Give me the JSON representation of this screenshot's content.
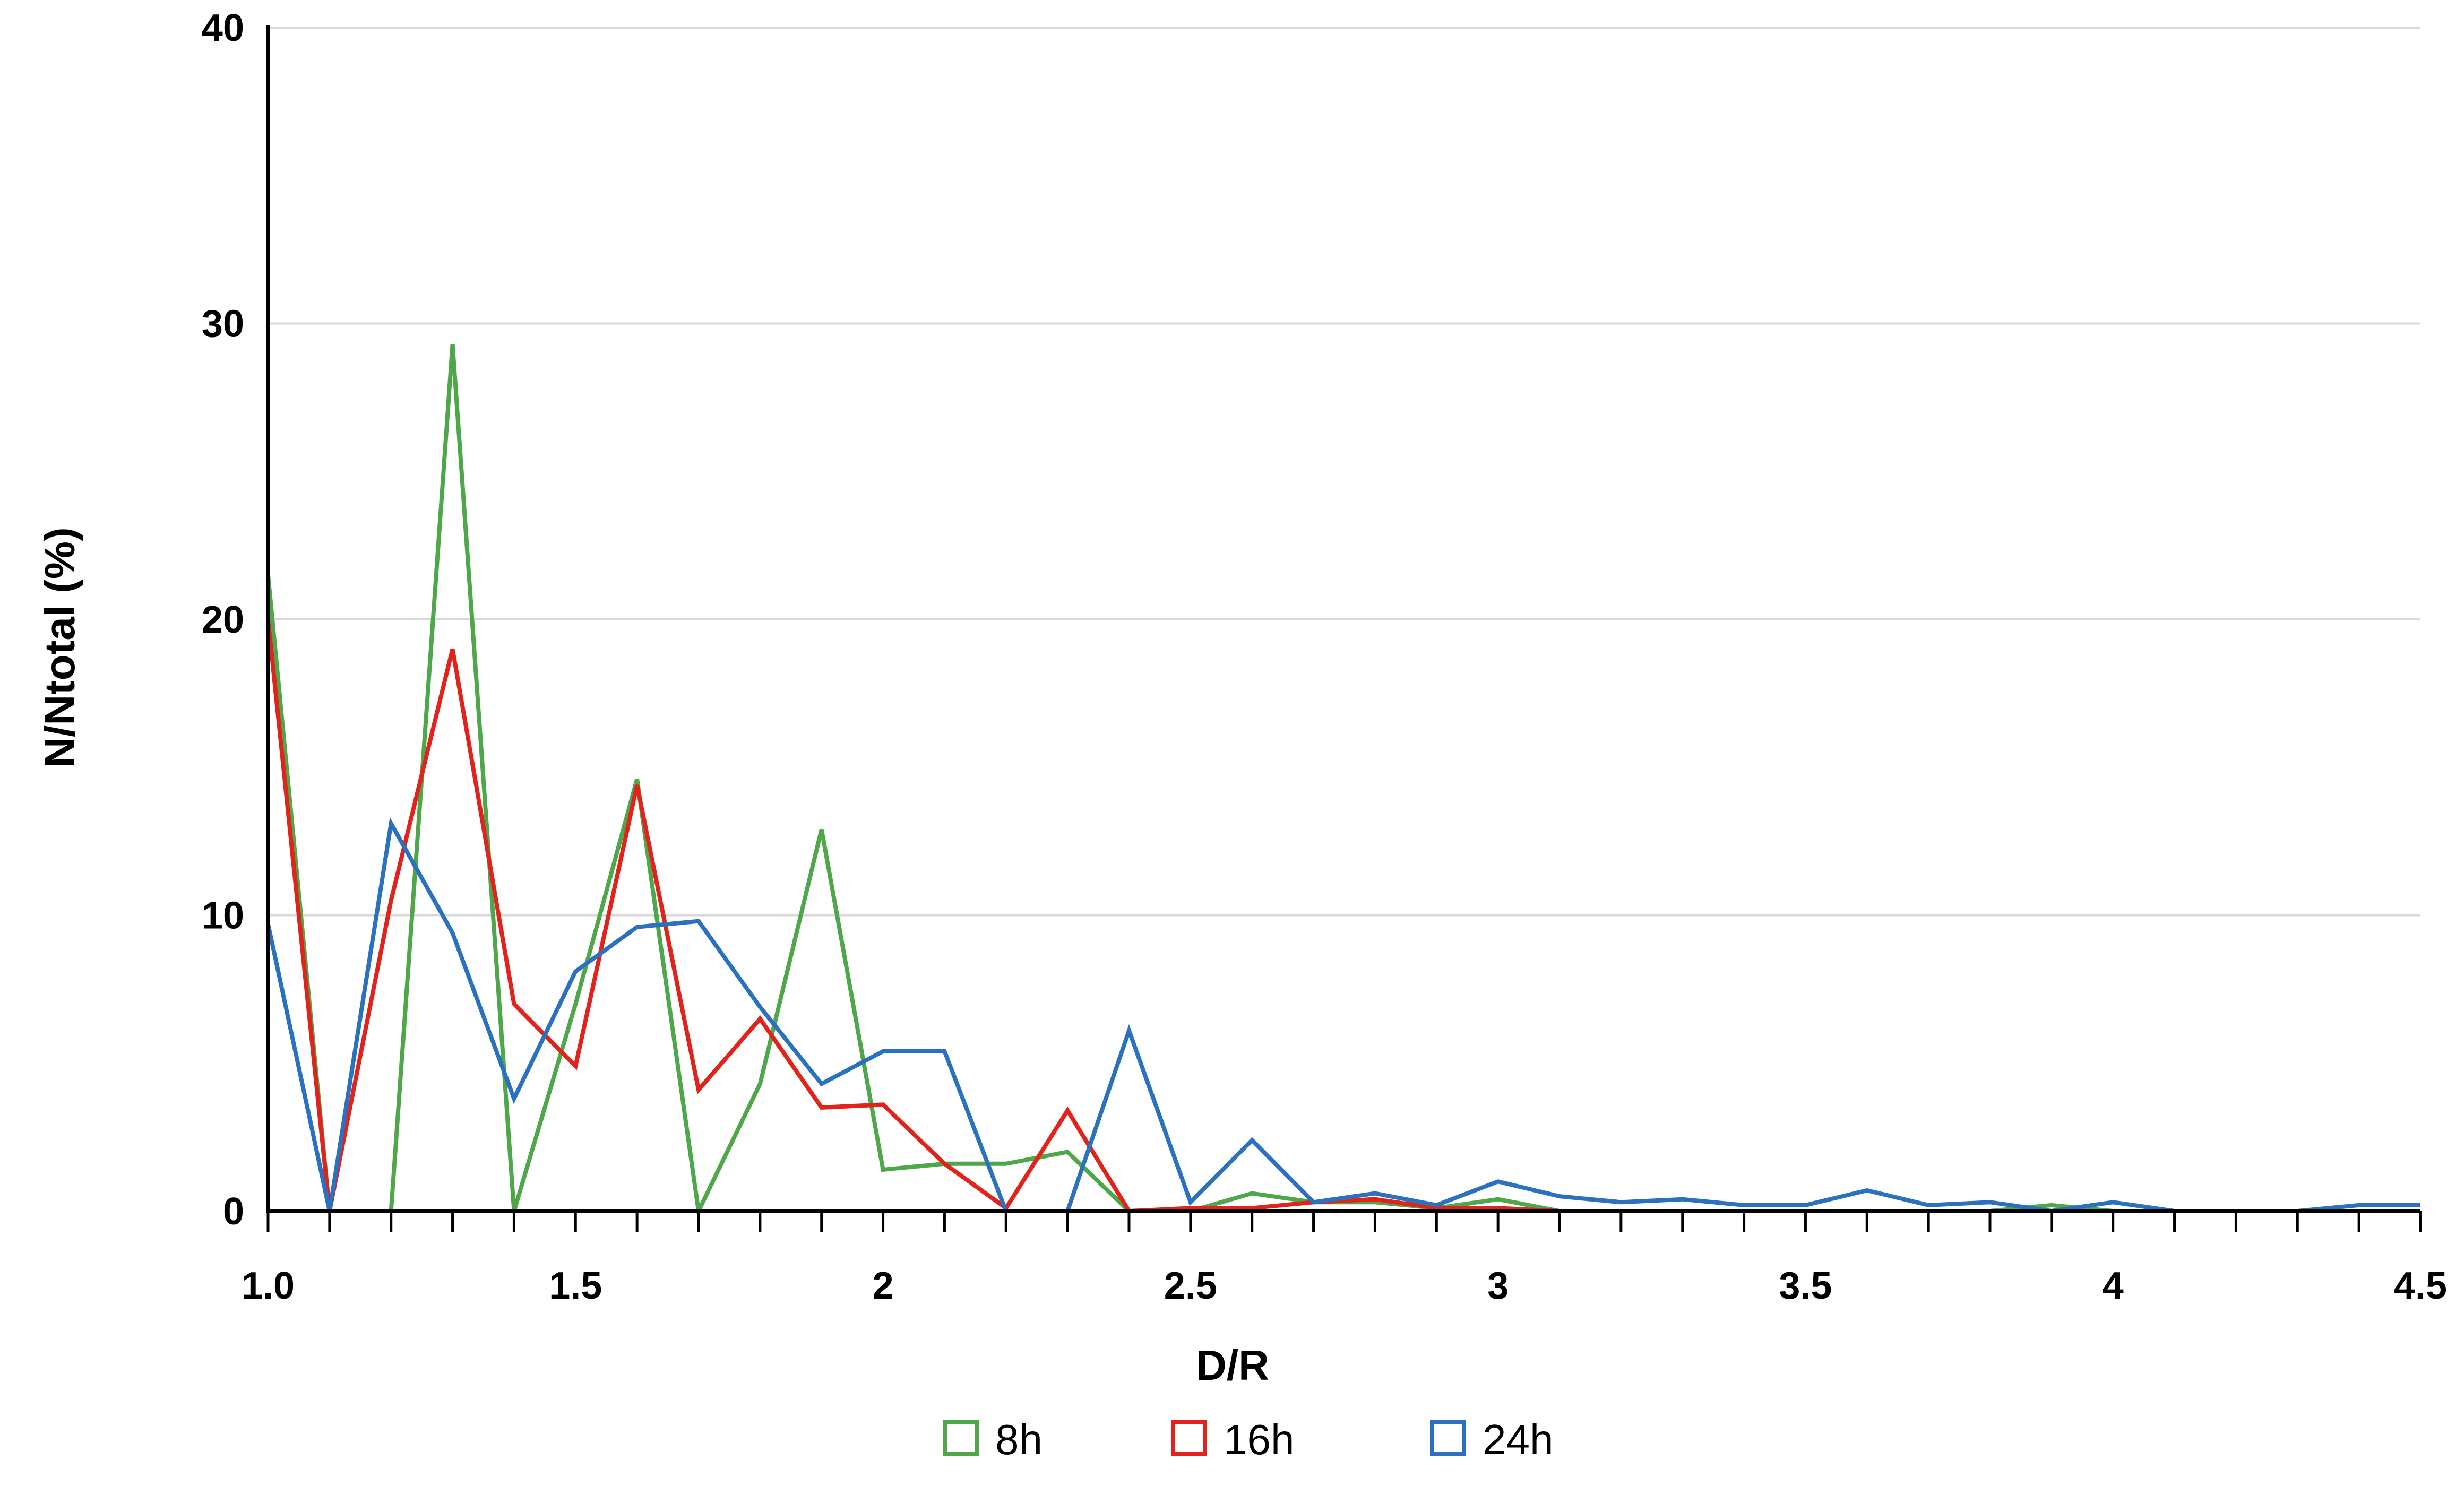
{
  "chart_data": {
    "type": "line",
    "title": "",
    "xlabel": "D/R",
    "ylabel": "N/Ntotal (%)",
    "xlim": [
      1.0,
      4.5
    ],
    "ylim": [
      0,
      40
    ],
    "x_ticks": [
      1.0,
      1.5,
      2,
      2.5,
      3,
      3.5,
      4,
      4.5
    ],
    "x_tick_labels": [
      "1.0",
      "1.5",
      "2",
      "2.5",
      "3",
      "3.5",
      "4",
      "4.5"
    ],
    "y_ticks": [
      0,
      10,
      20,
      30,
      40
    ],
    "y_tick_labels": [
      "0",
      "10",
      "20",
      "30",
      "40"
    ],
    "grid": "horizontal",
    "legend_position": "bottom",
    "x": [
      1.0,
      1.1,
      1.2,
      1.3,
      1.4,
      1.5,
      1.6,
      1.7,
      1.8,
      1.9,
      2.0,
      2.1,
      2.2,
      2.3,
      2.4,
      2.5,
      2.6,
      2.7,
      2.8,
      2.9,
      3.0,
      3.1,
      3.2,
      3.3,
      3.4,
      3.5,
      3.6,
      3.7,
      3.8,
      3.9,
      4.0,
      4.1,
      4.2,
      4.3,
      4.4,
      4.5
    ],
    "series": [
      {
        "name": "8h",
        "color": "#4EA84A",
        "values": [
          21.5,
          0,
          0,
          29.3,
          0,
          7.0,
          14.6,
          0,
          4.3,
          12.9,
          1.4,
          1.6,
          1.6,
          2.0,
          0,
          0,
          0.6,
          0.3,
          0.3,
          0.1,
          0.4,
          0,
          0,
          0,
          0,
          0,
          0,
          0,
          0,
          0.2,
          0,
          0,
          0,
          0,
          0,
          0
        ]
      },
      {
        "name": "16h",
        "color": "#E2221B",
        "values": [
          20.0,
          0,
          10.5,
          19.0,
          7.0,
          4.9,
          14.4,
          4.1,
          6.5,
          3.5,
          3.6,
          1.6,
          0.1,
          3.4,
          0,
          0.1,
          0.1,
          0.3,
          0.4,
          0.1,
          0.1,
          0,
          0,
          0,
          0,
          0,
          0,
          0,
          0,
          0,
          0,
          0,
          0,
          0,
          0,
          0
        ]
      },
      {
        "name": "24h",
        "color": "#2A72BF",
        "values": [
          9.7,
          0,
          13.1,
          9.4,
          3.8,
          8.1,
          9.6,
          9.8,
          6.9,
          4.3,
          5.4,
          5.4,
          0,
          0,
          6.1,
          0.3,
          2.4,
          0.3,
          0.6,
          0.2,
          1.0,
          0.5,
          0.3,
          0.4,
          0.2,
          0.2,
          0.7,
          0.2,
          0.3,
          0,
          0.3,
          0,
          0,
          0,
          0.2,
          0.2
        ]
      }
    ]
  }
}
